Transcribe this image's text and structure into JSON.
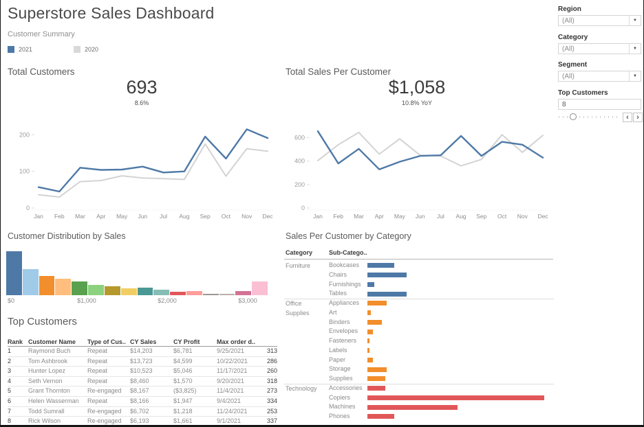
{
  "header": {
    "title": "Superstore Sales Dashboard",
    "subtitle": "Customer Summary",
    "legend": [
      {
        "label": "2021",
        "color": "#4e79a7"
      },
      {
        "label": "2020",
        "color": "#d9d9d9"
      }
    ]
  },
  "icons": {
    "dropdown_arrow": "▼",
    "spinner_left": "‹",
    "spinner_right": "›"
  },
  "filters": {
    "region": {
      "label": "Region",
      "value": "(All)"
    },
    "category": {
      "label": "Category",
      "value": "(All)"
    },
    "segment": {
      "label": "Segment",
      "value": "(All)"
    },
    "top_customers": {
      "label": "Top Customers",
      "value": "8",
      "slider_pos_pct": 22
    }
  },
  "chart_data": [
    {
      "id": "total_customers",
      "type": "line",
      "title": "Total Customers",
      "headline": "693",
      "headline_sub": "8.6%",
      "x": [
        "Jan",
        "Feb",
        "Mar",
        "Apr",
        "May",
        "Jun",
        "Jul",
        "Aug",
        "Sep",
        "Oct",
        "Nov",
        "Dec"
      ],
      "ylim": [
        0,
        240
      ],
      "yticks": [
        0,
        100,
        200
      ],
      "grid": false,
      "series": [
        {
          "name": "2021",
          "color": "#4e79a7",
          "values": [
            57,
            45,
            110,
            104,
            105,
            113,
            97,
            100,
            195,
            135,
            215,
            191
          ]
        },
        {
          "name": "2020",
          "color": "#d3d3d3",
          "values": [
            36,
            30,
            72,
            75,
            88,
            82,
            80,
            78,
            175,
            87,
            162,
            155
          ]
        }
      ]
    },
    {
      "id": "sales_per_customer",
      "type": "line",
      "title": "Total Sales Per Customer",
      "headline": "$1,058",
      "headline_sub": "10.8% YoY",
      "x": [
        "Jan",
        "Feb",
        "Mar",
        "Apr",
        "May",
        "Jun",
        "Jul",
        "Aug",
        "Sep",
        "Oct",
        "Nov",
        "Dec"
      ],
      "ylim": [
        0,
        750
      ],
      "yticks": [
        0,
        200,
        400,
        600
      ],
      "grid": false,
      "series": [
        {
          "name": "2021",
          "color": "#4e79a7",
          "values": [
            655,
            380,
            505,
            330,
            395,
            445,
            450,
            615,
            445,
            565,
            540,
            430
          ]
        },
        {
          "name": "2020",
          "color": "#d3d3d3",
          "values": [
            405,
            540,
            645,
            460,
            590,
            450,
            445,
            360,
            415,
            625,
            475,
            620
          ]
        }
      ]
    },
    {
      "id": "customer_distribution",
      "type": "bar",
      "title": "Customer Distribution by Sales",
      "bin_width_dollars": 200,
      "xticks": [
        "$0",
        "$1,000",
        "$2,000",
        "$3,000"
      ],
      "values_relative": [
        100,
        60,
        44,
        37,
        32,
        23,
        21,
        16,
        17,
        13,
        8,
        10,
        3,
        3,
        10,
        31
      ],
      "colors": [
        "#4e79a7",
        "#a0cbe8",
        "#f28e2b",
        "#ffbe7d",
        "#59a14f",
        "#8cd17d",
        "#b6992d",
        "#f1ce63",
        "#499894",
        "#86bcb6",
        "#e15759",
        "#ff9d9a",
        "#9d9792",
        "#bab0ac",
        "#d37295",
        "#fabfd2"
      ]
    },
    {
      "id": "sales_by_category",
      "type": "bar",
      "title": "Sales Per Customer by Category",
      "col_headers": [
        "Category",
        "Sub-Catego.."
      ],
      "max_value": 100,
      "groups": [
        {
          "category": "Furniture",
          "color": "#4e79a7",
          "rows": [
            [
              "Bookcases",
              15
            ],
            [
              "Chairs",
              22
            ],
            [
              "Furnishings",
              4
            ],
            [
              "Tables",
              22
            ]
          ]
        },
        {
          "category": "Office Supplies",
          "color": "#f28e2b",
          "rows": [
            [
              "Appliances",
              11
            ],
            [
              "Art",
              2
            ],
            [
              "Binders",
              8
            ],
            [
              "Envelopes",
              3
            ],
            [
              "Fasteners",
              1
            ],
            [
              "Labels",
              1
            ],
            [
              "Paper",
              3
            ],
            [
              "Storage",
              11
            ],
            [
              "Supplies",
              10
            ]
          ]
        },
        {
          "category": "Technology",
          "color": "#e15759",
          "rows": [
            [
              "Accessories",
              10
            ],
            [
              "Copiers",
              100
            ],
            [
              "Machines",
              51
            ],
            [
              "Phones",
              15
            ]
          ]
        }
      ]
    }
  ],
  "table": {
    "title": "Top Customers",
    "headers": [
      "Rank",
      "Customer Name",
      "Type of Cus..",
      "CY Sales",
      "CY Profit",
      "Max order d..",
      ""
    ],
    "rows": [
      [
        "1",
        "Raymond Buch",
        "Repeat",
        "$14,203",
        "$6,781",
        "9/25/2021",
        "313"
      ],
      [
        "2",
        "Tom Ashbrook",
        "Repeat",
        "$13,723",
        "$4,599",
        "10/22/2021",
        "286"
      ],
      [
        "3",
        "Hunter Lopez",
        "Repeat",
        "$10,523",
        "$5,046",
        "11/17/2021",
        "260"
      ],
      [
        "4",
        "Seth Vernon",
        "Repeat",
        "$8,460",
        "$1,570",
        "9/20/2021",
        "318"
      ],
      [
        "5",
        "Grant Thornton",
        "Re-engaged",
        "$8,167",
        "($3,825)",
        "11/4/2021",
        "273"
      ],
      [
        "6",
        "Helen Wasserman",
        "Repeat",
        "$8,166",
        "$1,947",
        "9/4/2021",
        "334"
      ],
      [
        "7",
        "Todd Sumrall",
        "Re-engaged",
        "$6,702",
        "$1,218",
        "11/24/2021",
        "253"
      ],
      [
        "8",
        "Rick Wilson",
        "Re-engaged",
        "$6,193",
        "$1,661",
        "9/1/2021",
        "337"
      ]
    ]
  }
}
